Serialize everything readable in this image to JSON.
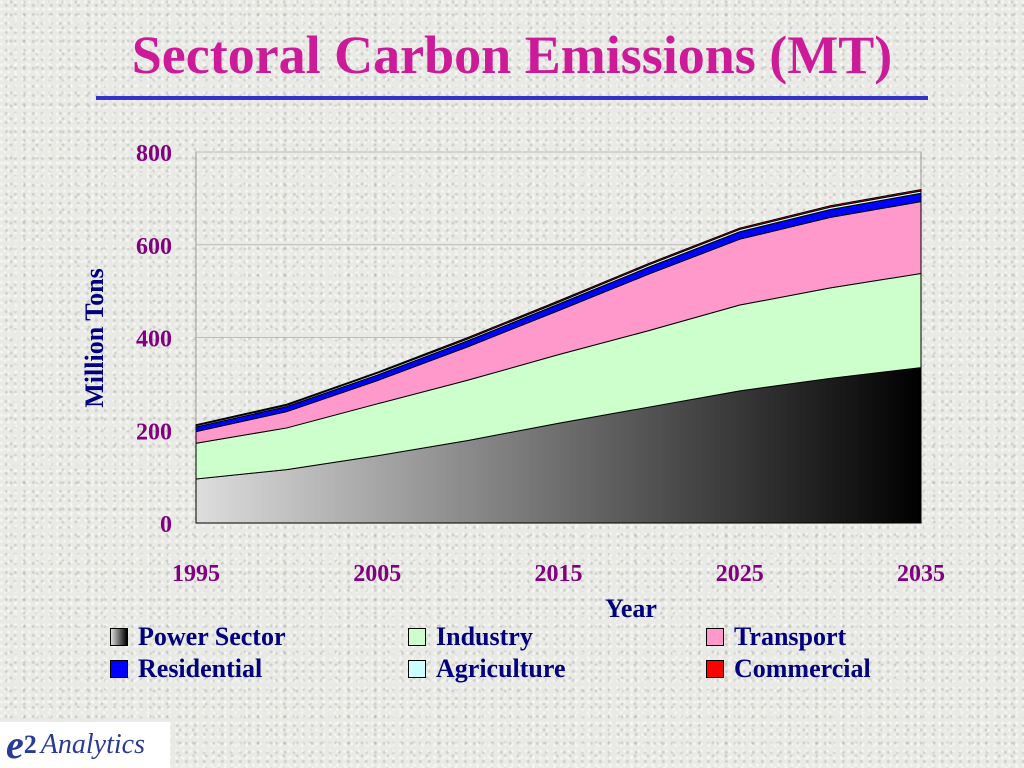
{
  "page": {
    "title": "Sectoral Carbon Emissions (MT)"
  },
  "logo": {
    "mark": "e2",
    "text": "Analytics"
  },
  "chart_data": {
    "type": "area",
    "stacked": true,
    "title": "Sectoral Carbon Emissions (MT)",
    "xlabel": "Year",
    "ylabel": "Million Tons",
    "x": [
      1995,
      2000,
      2005,
      2010,
      2015,
      2020,
      2025,
      2030,
      2035
    ],
    "xlim": [
      1995,
      2035
    ],
    "xticks": [
      1995,
      2005,
      2015,
      2025,
      2035
    ],
    "ylim": [
      0,
      800
    ],
    "yticks": [
      0,
      200,
      400,
      600,
      800
    ],
    "grid": "horizontal",
    "legend_position": "bottom",
    "series": [
      {
        "name": "Power Sector",
        "color": "#555555",
        "gradient": [
          "#dddddd",
          "#000000"
        ],
        "values": [
          95,
          115,
          145,
          178,
          215,
          250,
          285,
          312,
          335
        ]
      },
      {
        "name": "Industry",
        "color": "#ccffcc",
        "values": [
          77,
          90,
          112,
          130,
          148,
          165,
          185,
          195,
          203
        ]
      },
      {
        "name": "Transport",
        "color": "#ff99cc",
        "values": [
          25,
          35,
          50,
          72,
          95,
          122,
          142,
          152,
          155
        ]
      },
      {
        "name": "Residential",
        "color": "#0000ff",
        "values": [
          10,
          11,
          12,
          13,
          14,
          15,
          16,
          17,
          18
        ]
      },
      {
        "name": "Agriculture",
        "color": "#ccffff",
        "values": [
          3,
          3,
          4,
          4,
          4,
          5,
          5,
          5,
          5
        ]
      },
      {
        "name": "Commercial",
        "color": "#ff0000",
        "values": [
          2,
          2,
          2,
          3,
          3,
          3,
          3,
          3,
          3
        ]
      }
    ]
  }
}
